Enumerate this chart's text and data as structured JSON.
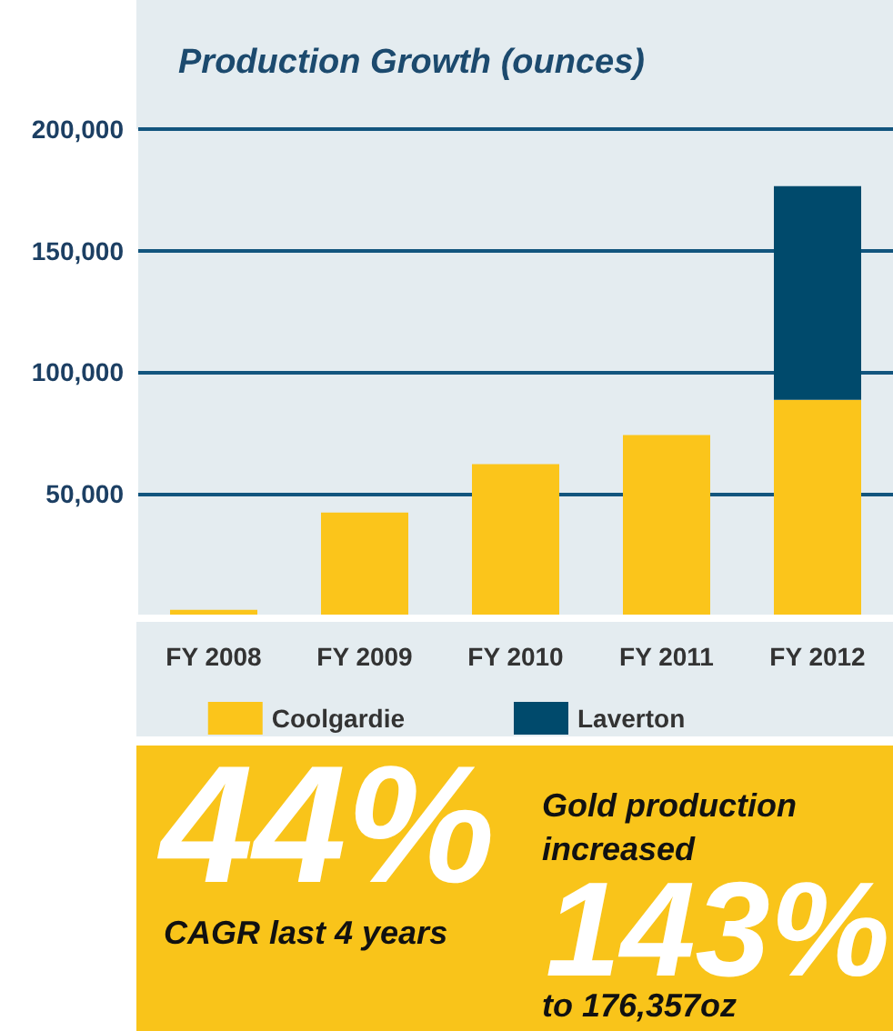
{
  "chart_data": {
    "type": "bar",
    "title": "Production Growth (ounces)",
    "categories": [
      "FY 2008",
      "FY 2009",
      "FY 2010",
      "FY 2011",
      "FY 2012"
    ],
    "stacked": true,
    "series": [
      {
        "name": "Coolgardie",
        "color": "#fbc51b",
        "values": [
          2000,
          42000,
          62000,
          74000,
          88500
        ]
      },
      {
        "name": "Laverton",
        "color": "#004a6c",
        "values": [
          null,
          null,
          null,
          null,
          88000
        ]
      }
    ],
    "ylim": [
      0,
      200000
    ],
    "yticks": [
      {
        "value": 50000,
        "label": "50,000"
      },
      {
        "value": 100000,
        "label": "100,000"
      },
      {
        "value": 150000,
        "label": "150,000"
      },
      {
        "value": 200000,
        "label": "200,000"
      }
    ],
    "grid": "y",
    "legend": "bottom",
    "annotations": [
      "44%",
      "CAGR last 4 years",
      "Gold production increased",
      "143%",
      "to 176,357oz"
    ]
  }
}
